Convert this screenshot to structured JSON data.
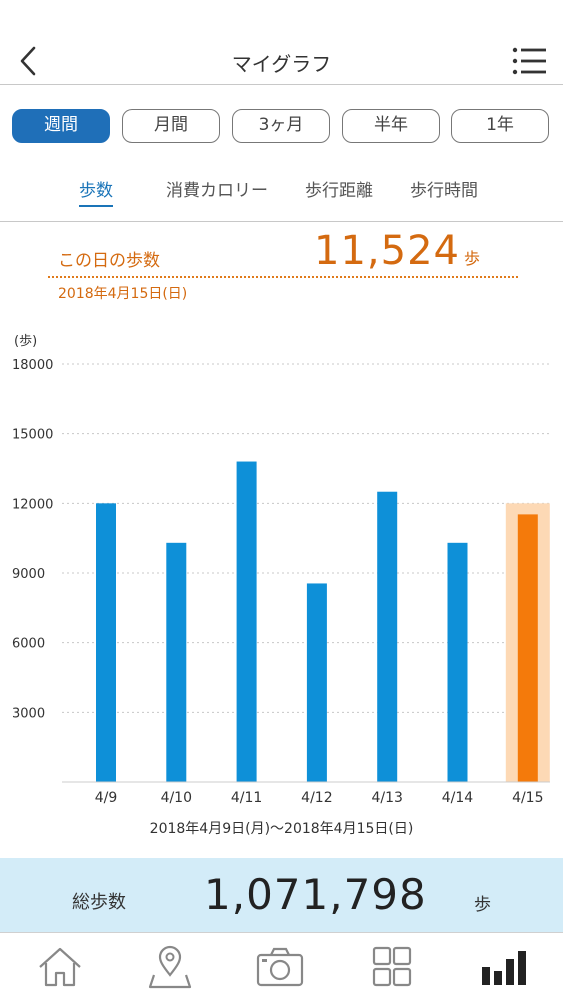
{
  "header": {
    "title": "マイグラフ",
    "back_icon": "chevron-left-icon",
    "menu_icon": "list-menu-icon"
  },
  "period_tabs": [
    {
      "label": "週間",
      "active": true
    },
    {
      "label": "月間",
      "active": false
    },
    {
      "label": "3ヶ月",
      "active": false
    },
    {
      "label": "半年",
      "active": false
    },
    {
      "label": "1年",
      "active": false
    }
  ],
  "metric_tabs": [
    {
      "label": "歩数",
      "active": true
    },
    {
      "label": "消費カロリー",
      "active": false
    },
    {
      "label": "歩行距離",
      "active": false
    },
    {
      "label": "歩行時間",
      "active": false
    }
  ],
  "day_summary": {
    "label": "この日の歩数",
    "value": "11,524",
    "unit": "歩",
    "date": "2018年4月15日(日)"
  },
  "chart_data": {
    "type": "bar",
    "ylabel": "(歩)",
    "ylim": [
      0,
      18000
    ],
    "yticks": [
      3000,
      6000,
      9000,
      12000,
      15000,
      18000
    ],
    "grid": true,
    "categories": [
      "4/9",
      "4/10",
      "4/11",
      "4/12",
      "4/13",
      "4/14",
      "4/15"
    ],
    "values": [
      12000,
      10300,
      13800,
      8550,
      12500,
      10300,
      11524
    ],
    "highlight_index": 6,
    "colors": {
      "bar": "#0e90d8",
      "highlight": "#f47a0b",
      "highlight_bg": "#fdd9b5"
    }
  },
  "range_label": "2018年4月9日(月)〜2018年4月15日(日)",
  "total": {
    "label": "総歩数",
    "value": "1,071,798",
    "unit": "歩"
  },
  "tabbar": [
    {
      "icon": "home-icon",
      "active": false
    },
    {
      "icon": "map-pin-icon",
      "active": false
    },
    {
      "icon": "camera-icon",
      "active": false
    },
    {
      "icon": "grid-icon",
      "active": false
    },
    {
      "icon": "bar-chart-icon",
      "active": true
    }
  ]
}
